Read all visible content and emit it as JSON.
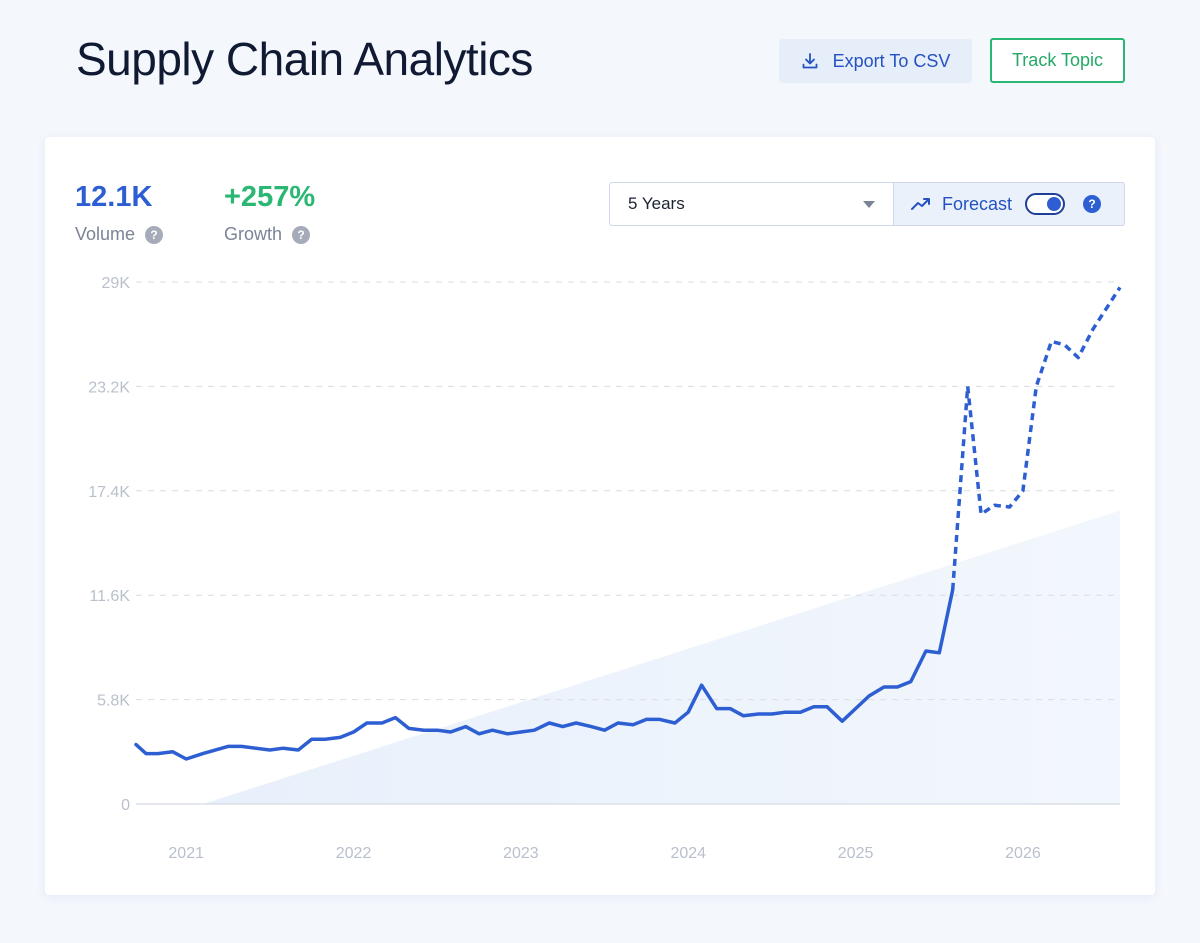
{
  "header": {
    "title": "Supply Chain Analytics",
    "export_label": "Export To CSV",
    "track_label": "Track Topic"
  },
  "metrics": {
    "volume": {
      "value": "12.1K",
      "label": "Volume",
      "color": "#2d5fd3"
    },
    "growth": {
      "value": "+257%",
      "label": "Growth",
      "color": "#2ab773"
    }
  },
  "controls": {
    "range_selected": "5 Years",
    "forecast_label": "Forecast",
    "forecast_enabled": true,
    "help_glyph": "?"
  },
  "icons": {
    "export": "download-icon",
    "forecast": "trend-up-icon",
    "help": "question-circle-icon",
    "dropdown": "caret-down-icon"
  },
  "colors": {
    "line": "#2d5fd3",
    "trend_area": "#e8f0fb",
    "grid": "#d9dde4",
    "accent_green": "#2ab773"
  },
  "chart_data": {
    "type": "line",
    "ylim": [
      0,
      29000
    ],
    "xlim": [
      2020.7,
      2026.58
    ],
    "y_ticks": [
      {
        "value": 0,
        "label": "0"
      },
      {
        "value": 5800,
        "label": "5.8K"
      },
      {
        "value": 11600,
        "label": "11.6K"
      },
      {
        "value": 17400,
        "label": "17.4K"
      },
      {
        "value": 23200,
        "label": "23.2K"
      },
      {
        "value": 29000,
        "label": "29K"
      }
    ],
    "x_ticks": [
      {
        "value": 2021,
        "label": "2021"
      },
      {
        "value": 2022,
        "label": "2022"
      },
      {
        "value": 2023,
        "label": "2023"
      },
      {
        "value": 2024,
        "label": "2024"
      },
      {
        "value": 2025,
        "label": "2025"
      },
      {
        "value": 2026,
        "label": "2026"
      }
    ],
    "grid": "horizontal-dashed",
    "series": [
      {
        "style": "solid",
        "points": [
          [
            2020.7,
            3300
          ],
          [
            2020.76,
            2800
          ],
          [
            2020.83,
            2800
          ],
          [
            2020.92,
            2900
          ],
          [
            2021.0,
            2500
          ],
          [
            2021.1,
            2800
          ],
          [
            2021.25,
            3200
          ],
          [
            2021.33,
            3200
          ],
          [
            2021.5,
            3000
          ],
          [
            2021.58,
            3100
          ],
          [
            2021.67,
            3000
          ],
          [
            2021.75,
            3600
          ],
          [
            2021.83,
            3600
          ],
          [
            2021.92,
            3700
          ],
          [
            2022.0,
            4000
          ],
          [
            2022.08,
            4500
          ],
          [
            2022.17,
            4500
          ],
          [
            2022.25,
            4800
          ],
          [
            2022.33,
            4200
          ],
          [
            2022.42,
            4100
          ],
          [
            2022.5,
            4100
          ],
          [
            2022.58,
            4000
          ],
          [
            2022.67,
            4300
          ],
          [
            2022.75,
            3900
          ],
          [
            2022.83,
            4100
          ],
          [
            2022.92,
            3900
          ],
          [
            2023.0,
            4000
          ],
          [
            2023.08,
            4100
          ],
          [
            2023.17,
            4500
          ],
          [
            2023.25,
            4300
          ],
          [
            2023.33,
            4500
          ],
          [
            2023.42,
            4300
          ],
          [
            2023.5,
            4100
          ],
          [
            2023.58,
            4500
          ],
          [
            2023.67,
            4400
          ],
          [
            2023.75,
            4700
          ],
          [
            2023.83,
            4700
          ],
          [
            2023.92,
            4500
          ],
          [
            2024.0,
            5100
          ],
          [
            2024.08,
            6600
          ],
          [
            2024.17,
            5300
          ],
          [
            2024.25,
            5300
          ],
          [
            2024.33,
            4900
          ],
          [
            2024.42,
            5000
          ],
          [
            2024.5,
            5000
          ],
          [
            2024.58,
            5100
          ],
          [
            2024.67,
            5100
          ],
          [
            2024.75,
            5400
          ],
          [
            2024.83,
            5400
          ],
          [
            2024.92,
            4600
          ],
          [
            2025.0,
            5300
          ],
          [
            2025.08,
            6000
          ],
          [
            2025.17,
            6500
          ],
          [
            2025.25,
            6500
          ],
          [
            2025.33,
            6800
          ],
          [
            2025.42,
            8500
          ],
          [
            2025.5,
            8400
          ],
          [
            2025.58,
            11900
          ]
        ]
      },
      {
        "style": "dashed",
        "points": [
          [
            2025.58,
            11900
          ],
          [
            2025.67,
            23200
          ],
          [
            2025.75,
            16100
          ],
          [
            2025.83,
            16600
          ],
          [
            2025.92,
            16500
          ],
          [
            2026.0,
            17400
          ],
          [
            2026.08,
            23200
          ],
          [
            2026.17,
            25700
          ],
          [
            2026.25,
            25500
          ],
          [
            2026.33,
            24800
          ],
          [
            2026.42,
            26400
          ],
          [
            2026.58,
            28700
          ]
        ]
      }
    ],
    "trend_area": {
      "x": [
        2021.1,
        2026.58
      ],
      "y_end": 16300
    }
  }
}
